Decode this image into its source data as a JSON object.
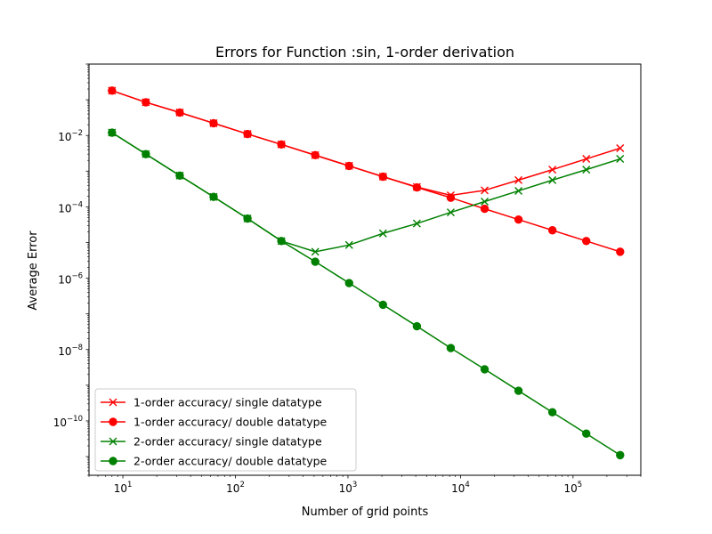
{
  "chart_data": {
    "type": "line",
    "title": "Errors for Function :sin, 1-order derivation",
    "xlabel": "Number of grid points",
    "ylabel": "Average Error",
    "xscale": "log",
    "yscale": "log",
    "xlim": [
      5,
      400000
    ],
    "ylim": [
      3e-12,
      1
    ],
    "grid": false,
    "legend_position": "lower-left",
    "x_ticks": [
      {
        "value": 10,
        "base": "10",
        "exp": "1"
      },
      {
        "value": 100,
        "base": "10",
        "exp": "2"
      },
      {
        "value": 1000,
        "base": "10",
        "exp": "3"
      },
      {
        "value": 10000,
        "base": "10",
        "exp": "4"
      },
      {
        "value": 100000,
        "base": "10",
        "exp": "5"
      }
    ],
    "y_ticks": [
      {
        "value": 1e-10,
        "base": "10",
        "exp": "−10"
      },
      {
        "value": 1e-08,
        "base": "10",
        "exp": "−8"
      },
      {
        "value": 1e-06,
        "base": "10",
        "exp": "−6"
      },
      {
        "value": 0.0001,
        "base": "10",
        "exp": "−4"
      },
      {
        "value": 0.01,
        "base": "10",
        "exp": "−2"
      }
    ],
    "x": [
      8,
      16,
      32,
      64,
      128,
      256,
      512,
      1024,
      2048,
      4096,
      8192,
      16384,
      32768,
      65536,
      131072,
      262144
    ],
    "series": [
      {
        "name": "1-order accuracy/ single datatype",
        "color": "#ff0000",
        "marker": "x",
        "values": [
          0.18,
          0.085,
          0.044,
          0.022,
          0.011,
          0.0056,
          0.0028,
          0.0014,
          0.0007,
          0.00036,
          0.00021,
          0.00029,
          0.00056,
          0.0011,
          0.0022,
          0.0044
        ]
      },
      {
        "name": "1-order accuracy/ double datatype",
        "color": "#ff0000",
        "marker": "o",
        "values": [
          0.18,
          0.085,
          0.044,
          0.022,
          0.011,
          0.0056,
          0.0028,
          0.0014,
          0.0007,
          0.00035,
          0.00018,
          8.8e-05,
          4.4e-05,
          2.2e-05,
          1.1e-05,
          5.5e-06
        ]
      },
      {
        "name": "2-order accuracy/ single datatype",
        "color": "#008000",
        "marker": "x",
        "values": [
          0.012,
          0.003,
          0.00075,
          0.00019,
          4.7e-05,
          1.1e-05,
          5.5e-06,
          8.5e-06,
          1.8e-05,
          3.4e-05,
          7e-05,
          0.00014,
          0.00028,
          0.00056,
          0.0011,
          0.0022
        ]
      },
      {
        "name": "2-order accuracy/ double datatype",
        "color": "#008000",
        "marker": "o",
        "values": [
          0.012,
          0.003,
          0.00075,
          0.00019,
          4.7e-05,
          1.1e-05,
          2.9e-06,
          7.3e-07,
          1.8e-07,
          4.5e-08,
          1.1e-08,
          2.8e-09,
          7e-10,
          1.75e-10,
          4.4e-11,
          1.1e-11
        ]
      }
    ]
  }
}
